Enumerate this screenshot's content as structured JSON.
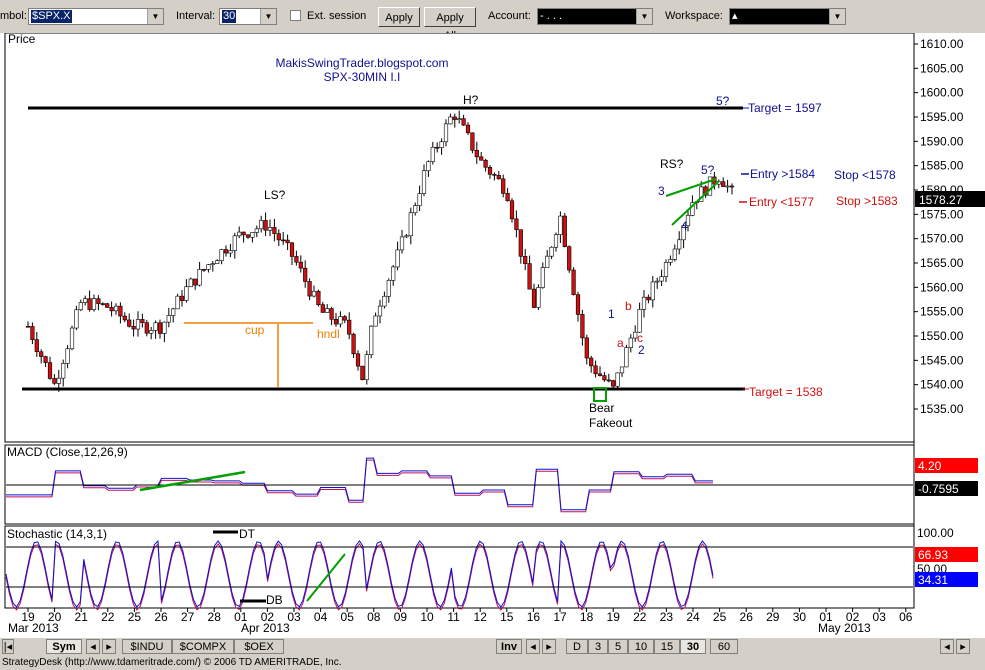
{
  "toolbar": {
    "symbol_label": "mbol:",
    "symbol_value": "$SPX.X",
    "interval_label": "Interval:",
    "interval_value": "30",
    "ext_session_label": "Ext. session",
    "apply_label": "Apply",
    "apply_all_label": "Apply All",
    "account_label": "Account:",
    "account_value": "- .  .  .",
    "workspace_label": "Workspace:",
    "workspace_value": "▴"
  },
  "chart": {
    "price_panel_label": "Price",
    "source_line1": "MakisSwingTrader.blogspot.com",
    "source_line2": "SPX-30MIN I.I",
    "price_ticks": [
      "1610.00",
      "1605.00",
      "1600.00",
      "1595.00",
      "1590.00",
      "1585.00",
      "1580.00",
      "1575.00",
      "1570.00",
      "1565.00",
      "1560.00",
      "1555.00",
      "1550.00",
      "1545.00",
      "1540.00",
      "1535.00"
    ],
    "last_price": "1578.27",
    "annotations": {
      "head": "H?",
      "left_shoulder": "LS?",
      "right_shoulder": "RS?",
      "cup": "cup",
      "handle": "hndl",
      "bear": "Bear",
      "fakeout": "Fakeout",
      "wave_5q_top": "5?",
      "wave_5q": "5?",
      "wave_3": "3",
      "wave_4": "4",
      "wave_1": "1",
      "wave_2": "2",
      "wave_a": "a",
      "wave_b": "b",
      "wave_c": "c",
      "target_upper": "Target = 1597",
      "target_lower": "Target = 1538",
      "long_entry": "Entry >1584",
      "long_stop": "Stop <1578",
      "short_entry": "Entry <1577",
      "short_stop": "Stop >1583",
      "double_top": "DT",
      "double_bottom": "DB"
    },
    "macd_label": "MACD (Close,12,26,9)",
    "macd_value1": "4.20",
    "macd_value2": "-0.7595",
    "stoch_label": "Stochastic (14,3,1)",
    "stoch_ticks": [
      "100.00",
      "50.00"
    ],
    "stoch_value1": "66.93",
    "stoch_value2": "34.31",
    "date_ticks": [
      "19",
      "20",
      "21",
      "22",
      "25",
      "26",
      "27",
      "28",
      "01",
      "02",
      "03",
      "04",
      "05",
      "08",
      "09",
      "10",
      "11",
      "12",
      "15",
      "16",
      "17",
      "18",
      "19",
      "22",
      "23",
      "24",
      "25",
      "26",
      "29",
      "30",
      "01",
      "02",
      "03",
      "06"
    ],
    "month_labels": [
      "Mar 2013",
      "Apr 2013",
      "May 2013"
    ],
    "colors": {
      "up": "#ffffff",
      "down": "#d01010",
      "target_line": "#000000",
      "macd_line": "#1010d0",
      "signal_line": "#c01060",
      "trend_line": "#00a000",
      "cup_line": "#f08000",
      "blue_text": "#101090",
      "red_text": "#d01010"
    }
  },
  "chart_data": {
    "type": "candlestick",
    "title": "SPX-30MIN I.I",
    "x_range": [
      "2013-03-19",
      "2013-05-06"
    ],
    "ylim": [
      1532,
      1614
    ],
    "horizontal_levels": [
      1597,
      1538
    ],
    "key_points": [
      {
        "date": "2013-03-19",
        "price": 1552
      },
      {
        "date": "2013-03-20",
        "price": 1540
      },
      {
        "date": "2013-03-21",
        "price": 1557
      },
      {
        "date": "2013-03-22",
        "price": 1556
      },
      {
        "date": "2013-03-25",
        "price": 1552
      },
      {
        "date": "2013-03-26",
        "price": 1552
      },
      {
        "date": "2013-03-27",
        "price": 1560
      },
      {
        "date": "2013-03-28",
        "price": 1566
      },
      {
        "date": "2013-04-01",
        "price": 1571
      },
      {
        "date": "2013-04-02",
        "price": 1573
      },
      {
        "date": "2013-04-03",
        "price": 1566
      },
      {
        "date": "2013-04-04",
        "price": 1555
      },
      {
        "date": "2013-04-05",
        "price": 1552
      },
      {
        "date": "2013-04-05",
        "price": 1541
      },
      {
        "date": "2013-04-08",
        "price": 1554
      },
      {
        "date": "2013-04-09",
        "price": 1568
      },
      {
        "date": "2013-04-10",
        "price": 1585
      },
      {
        "date": "2013-04-11",
        "price": 1596
      },
      {
        "date": "2013-04-12",
        "price": 1586
      },
      {
        "date": "2013-04-15",
        "price": 1580
      },
      {
        "date": "2013-04-16",
        "price": 1556
      },
      {
        "date": "2013-04-17",
        "price": 1575
      },
      {
        "date": "2013-04-18",
        "price": 1545
      },
      {
        "date": "2013-04-19",
        "price": 1539
      },
      {
        "date": "2013-04-22",
        "price": 1555
      },
      {
        "date": "2013-04-23",
        "price": 1565
      },
      {
        "date": "2013-04-24",
        "price": 1578
      },
      {
        "date": "2013-04-25",
        "price": 1583
      },
      {
        "date": "2013-04-25",
        "price": 1578.27
      }
    ]
  }
}
